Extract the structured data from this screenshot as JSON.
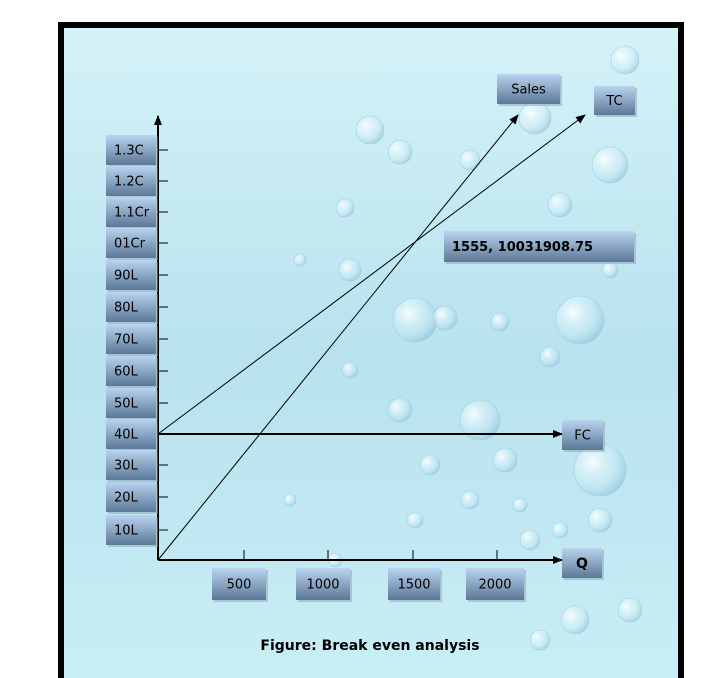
{
  "y_axis": {
    "labels": [
      "1.3C",
      "1.2C",
      "1.1Cr",
      "01Cr",
      "90L",
      "80L",
      "70L",
      "60L",
      "50L",
      "40L",
      "30L",
      "20L",
      "10L"
    ]
  },
  "x_axis": {
    "title": "Q",
    "labels": [
      "500",
      "1000",
      "1500",
      "2000"
    ]
  },
  "lines": {
    "sales": "Sales",
    "total_cost": "TC",
    "fixed_cost": "FC"
  },
  "annotation": "1555, 10031908.75",
  "caption": "Figure: Break even analysis"
}
